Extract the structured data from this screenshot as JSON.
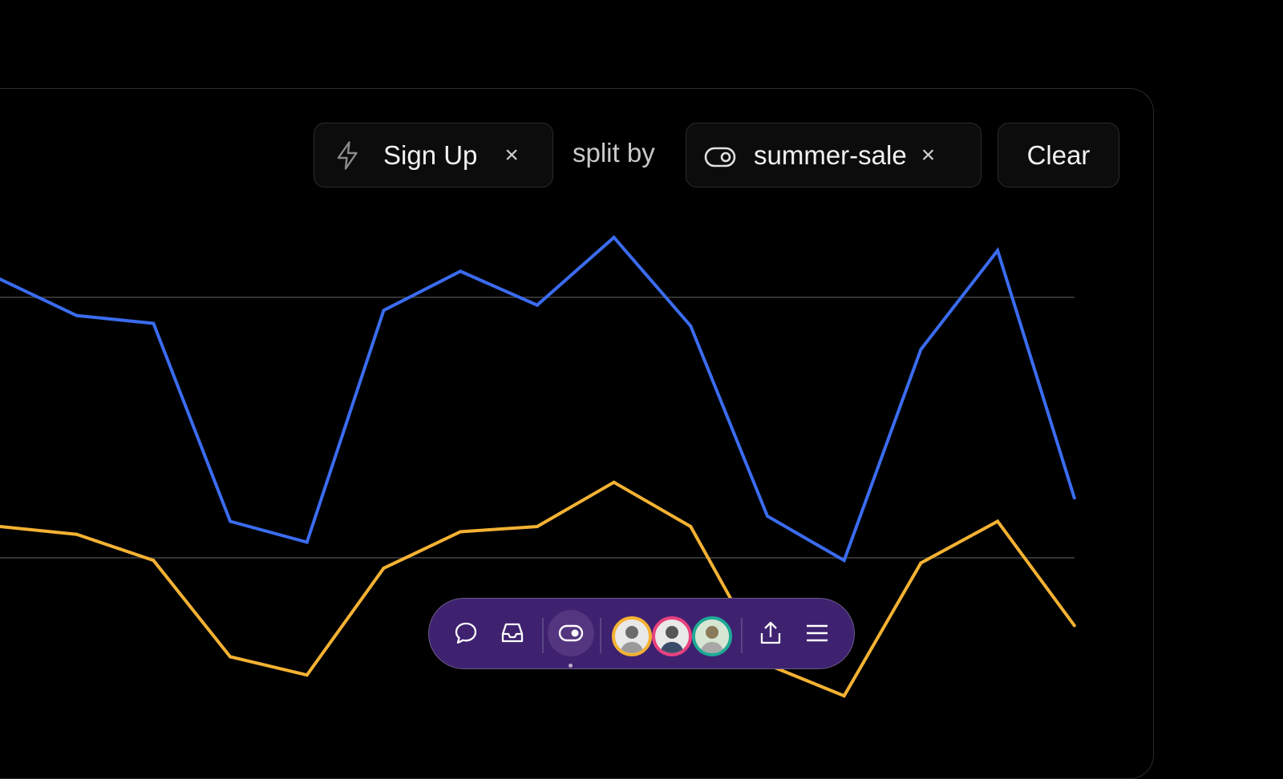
{
  "filters": {
    "event_chip": {
      "icon": "lightning-icon",
      "label": "Sign Up",
      "remove": "×"
    },
    "split_label": "split by",
    "split_chip": {
      "icon": "toggle-icon",
      "label": "summer-sale",
      "remove": "×"
    },
    "clear_label": "Clear"
  },
  "chart_data": {
    "type": "line",
    "gridlines": [
      100,
      200
    ],
    "grid": true,
    "series": [
      {
        "color": "#3b6cf0",
        "values": [
          207,
          193,
          190,
          114,
          106,
          195,
          210,
          197,
          223,
          189,
          116,
          99,
          180,
          218,
          123
        ]
      },
      {
        "color": "#f4b233",
        "values": [
          112,
          109,
          99,
          62,
          55,
          96,
          110,
          112,
          129,
          112,
          59,
          47,
          98,
          114,
          74
        ]
      }
    ]
  },
  "toolbar": {
    "background": "#3e2270",
    "items": [
      "comment-icon",
      "inbox-icon",
      "toggle-icon",
      "share-icon",
      "menu-icon"
    ],
    "avatars": [
      {
        "ring": "#f4b233"
      },
      {
        "ring": "#e8417e"
      },
      {
        "ring": "#1faa96"
      }
    ]
  }
}
